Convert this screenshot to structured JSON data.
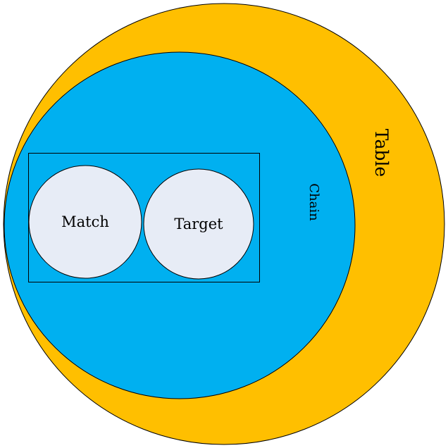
{
  "diagram": {
    "outer": {
      "label": "Table",
      "color": "#FFBF00"
    },
    "inner": {
      "label": "Chain",
      "color": "#00B0F0"
    },
    "items": [
      {
        "label": "Match",
        "color": "#E7ECF6"
      },
      {
        "label": "Target",
        "color": "#E7ECF6"
      }
    ],
    "outline_color": "#000000"
  }
}
